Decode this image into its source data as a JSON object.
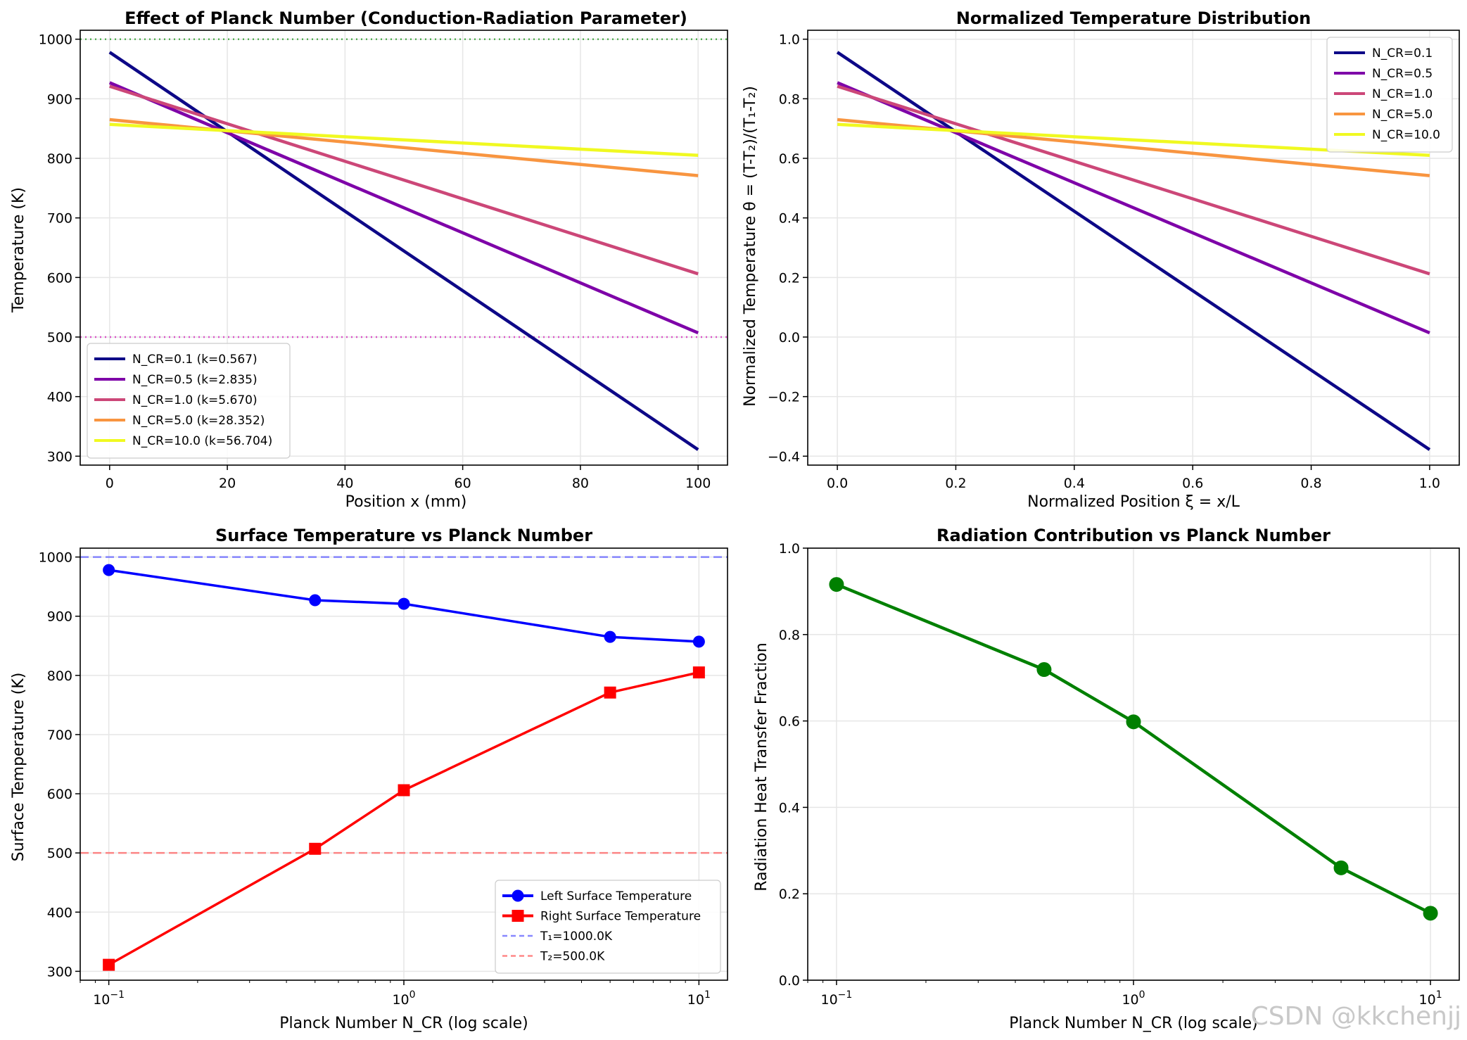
{
  "watermark": "CSDN @kkchenjj",
  "chart_data": [
    {
      "type": "line",
      "title": "Effect of Planck Number (Conduction-Radiation Parameter)",
      "xlabel": "Position x (mm)",
      "ylabel": "Temperature (K)",
      "xlim": [
        -5,
        105
      ],
      "ylim": [
        285,
        1015
      ],
      "xticks": [
        0,
        20,
        40,
        60,
        80,
        100
      ],
      "xtick_labels": [
        "0",
        "20",
        "40",
        "60",
        "80",
        "100"
      ],
      "yticks": [
        300,
        400,
        500,
        600,
        700,
        800,
        900,
        1000
      ],
      "ytick_labels": [
        "300",
        "400",
        "500",
        "600",
        "700",
        "800",
        "900",
        "1000"
      ],
      "grid": true,
      "legend_position": "lower-left",
      "series": [
        {
          "name": "N_CR=0.1 (k=0.567)",
          "color": "#0d0887",
          "x": [
            0,
            100
          ],
          "y": [
            978,
            311
          ]
        },
        {
          "name": "N_CR=0.5 (k=2.835)",
          "color": "#7e03a8",
          "x": [
            0,
            100
          ],
          "y": [
            927,
            507
          ]
        },
        {
          "name": "N_CR=1.0 (k=5.670)",
          "color": "#cc4778",
          "x": [
            0,
            100
          ],
          "y": [
            921,
            606
          ]
        },
        {
          "name": "N_CR=5.0 (k=28.352)",
          "color": "#f89540",
          "x": [
            0,
            100
          ],
          "y": [
            865,
            771
          ]
        },
        {
          "name": "N_CR=10.0 (k=56.704)",
          "color": "#f0f921",
          "x": [
            0,
            100
          ],
          "y": [
            857,
            805
          ]
        }
      ],
      "reference_lines": [
        {
          "y": 1000,
          "color": "#2ca02c",
          "style": "dotted"
        },
        {
          "y": 500,
          "color": "#d62fc0",
          "style": "dotted"
        }
      ]
    },
    {
      "type": "line",
      "title": "Normalized Temperature Distribution",
      "xlabel": "Normalized Position ξ = x/L",
      "ylabel": "Normalized Temperature θ = (T-T₂)/(T₁-T₂)",
      "xlim": [
        -0.05,
        1.05
      ],
      "ylim": [
        -0.43,
        1.03
      ],
      "xticks": [
        0,
        0.2,
        0.4,
        0.6,
        0.8,
        1.0
      ],
      "xtick_labels": [
        "0.0",
        "0.2",
        "0.4",
        "0.6",
        "0.8",
        "1.0"
      ],
      "yticks": [
        -0.4,
        -0.2,
        0,
        0.2,
        0.4,
        0.6,
        0.8,
        1.0
      ],
      "ytick_labels": [
        "−0.4",
        "−0.2",
        "0.0",
        "0.2",
        "0.4",
        "0.6",
        "0.8",
        "1.0"
      ],
      "grid": true,
      "legend_position": "upper-right",
      "series": [
        {
          "name": "N_CR=0.1",
          "color": "#0d0887",
          "x": [
            0,
            1
          ],
          "y": [
            0.956,
            -0.378
          ]
        },
        {
          "name": "N_CR=0.5",
          "color": "#7e03a8",
          "x": [
            0,
            1
          ],
          "y": [
            0.854,
            0.014
          ]
        },
        {
          "name": "N_CR=1.0",
          "color": "#cc4778",
          "x": [
            0,
            1
          ],
          "y": [
            0.842,
            0.212
          ]
        },
        {
          "name": "N_CR=5.0",
          "color": "#f89540",
          "x": [
            0,
            1
          ],
          "y": [
            0.73,
            0.542
          ]
        },
        {
          "name": "N_CR=10.0",
          "color": "#f0f921",
          "x": [
            0,
            1
          ],
          "y": [
            0.714,
            0.61
          ]
        }
      ]
    },
    {
      "type": "line",
      "title": "Surface Temperature vs Planck Number",
      "xlabel": "Planck Number N_CR (log scale)",
      "ylabel": "Surface Temperature (K)",
      "xscale": "log",
      "xlim": [
        0.08,
        12.5
      ],
      "ylim": [
        285,
        1015
      ],
      "xticks": [
        0.1,
        1,
        10
      ],
      "yticks": [
        300,
        400,
        500,
        600,
        700,
        800,
        900,
        1000
      ],
      "ytick_labels": [
        "300",
        "400",
        "500",
        "600",
        "700",
        "800",
        "900",
        "1000"
      ],
      "grid": true,
      "legend_position": "lower-right",
      "series": [
        {
          "name": "Left Surface Temperature",
          "color": "#0000ff",
          "marker": "circle",
          "x": [
            0.1,
            0.5,
            1.0,
            5.0,
            10.0
          ],
          "y": [
            978,
            927,
            921,
            865,
            857
          ]
        },
        {
          "name": "Right Surface Temperature",
          "color": "#ff0000",
          "marker": "square",
          "x": [
            0.1,
            0.5,
            1.0,
            5.0,
            10.0
          ],
          "y": [
            311,
            507,
            606,
            771,
            805
          ]
        }
      ],
      "reference_lines": [
        {
          "y": 1000,
          "color": "#6b6bff",
          "style": "dashed",
          "name": "T₁=1000.0K"
        },
        {
          "y": 500,
          "color": "#ff6b6b",
          "style": "dashed",
          "name": "T₂=500.0K"
        }
      ]
    },
    {
      "type": "line",
      "title": "Radiation Contribution vs Planck Number",
      "xlabel": "Planck Number N_CR (log scale)",
      "ylabel": "Radiation Heat Transfer Fraction",
      "xscale": "log",
      "xlim": [
        0.08,
        12.5
      ],
      "ylim": [
        0,
        1.0
      ],
      "xticks": [
        0.1,
        1,
        10
      ],
      "yticks": [
        0,
        0.2,
        0.4,
        0.6,
        0.8,
        1.0
      ],
      "ytick_labels": [
        "0.0",
        "0.2",
        "0.4",
        "0.6",
        "0.8",
        "1.0"
      ],
      "grid": true,
      "series": [
        {
          "color": "#008000",
          "marker": "circle",
          "x": [
            0.1,
            0.5,
            1.0,
            5.0,
            10.0
          ],
          "y": [
            0.916,
            0.719,
            0.598,
            0.26,
            0.155
          ]
        }
      ]
    }
  ]
}
